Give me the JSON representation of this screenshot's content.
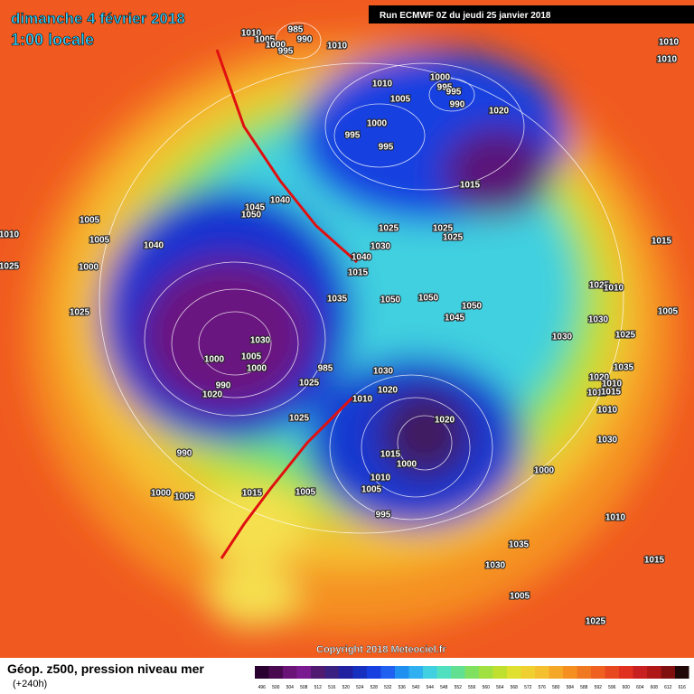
{
  "header": {
    "date": "dimanche 4 février 2018",
    "time": "1:00 locale",
    "run": "Run ECMWF 0Z du jeudi 25 janvier 2018"
  },
  "copyright": "Copyright 2018 Meteociel.fr",
  "footer": {
    "title": "Géop. z500, pression niveau mer",
    "lead": "(+240h)"
  },
  "colorbar": {
    "labels": [
      496,
      500,
      504,
      508,
      512,
      516,
      520,
      524,
      528,
      532,
      536,
      540,
      544,
      548,
      552,
      556,
      560,
      564,
      568,
      572,
      576,
      580,
      584,
      588,
      592,
      596,
      600,
      604,
      608,
      612,
      616
    ],
    "colors": [
      "#2a0030",
      "#4a0a50",
      "#6a1478",
      "#7a1a90",
      "#501a70",
      "#3a2080",
      "#2020a0",
      "#1830c0",
      "#1840e0",
      "#2060f0",
      "#2090f0",
      "#30b0f0",
      "#40d0e0",
      "#50e0c0",
      "#60e090",
      "#80e060",
      "#a0e040",
      "#c0e030",
      "#e0e030",
      "#f0d030",
      "#f5c030",
      "#f5a828",
      "#f59020",
      "#f07820",
      "#f06020",
      "#e84820",
      "#e03020",
      "#c82020",
      "#b01818",
      "#801010",
      "#200808"
    ]
  },
  "isobar_labels": [
    1010,
    1005,
    985,
    990,
    1000,
    995,
    1010,
    1010,
    1010,
    1010,
    995,
    1000,
    995,
    990,
    1005,
    1000,
    995,
    995,
    1020,
    1015,
    1040,
    1045,
    1050,
    1040,
    1025,
    1030,
    1025,
    1025,
    1005,
    1005,
    1040,
    1000,
    1015,
    1035,
    1050,
    1050,
    1045,
    1050,
    1030,
    1025,
    1030,
    1000,
    1005,
    1000,
    990,
    985,
    1020,
    1025,
    1010,
    1020,
    1020,
    1015,
    1000,
    1010,
    1005,
    995,
    990,
    1000,
    1005,
    1015,
    1005,
    1035,
    1030,
    1005,
    1000,
    1010,
    1015,
    1025,
    1025,
    1010,
    1030,
    1030,
    1025,
    1035,
    1020,
    1010,
    1015,
    1015,
    1010,
    1030,
    1005,
    1015,
    1010,
    1025,
    1025
  ]
}
